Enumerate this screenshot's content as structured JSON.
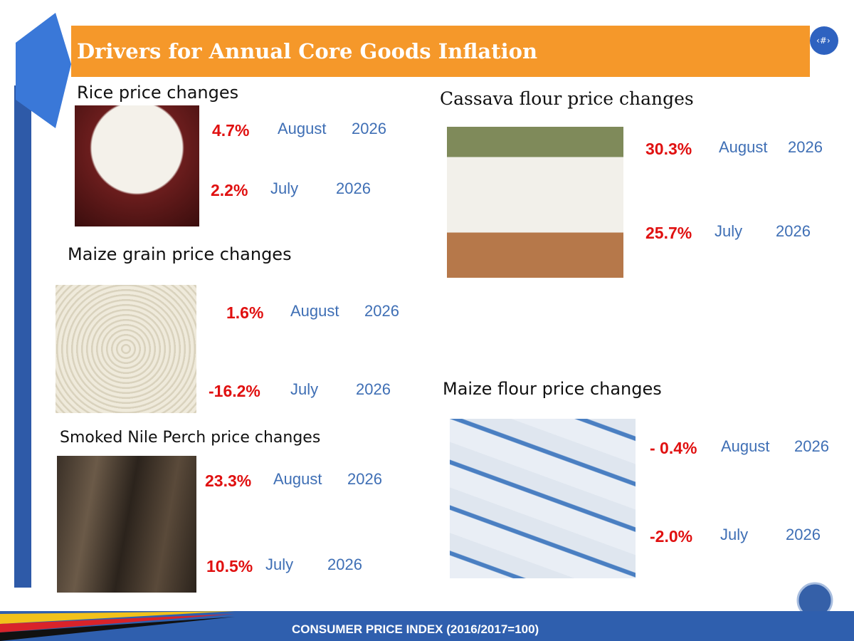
{
  "header": {
    "title": "Drivers for Annual Core Goods Inflation",
    "page_number": "‹#›"
  },
  "items": [
    {
      "title": "Rice price changes",
      "rows": [
        {
          "value": "4.7%",
          "month": "August",
          "year": "2026"
        },
        {
          "value": "2.2%",
          "month": "July",
          "year": "2026"
        }
      ]
    },
    {
      "title": "Maize grain price changes",
      "rows": [
        {
          "value": "1.6%",
          "month": "August",
          "year": "2026"
        },
        {
          "value": "-16.2%",
          "month": "July",
          "year": "2026"
        }
      ]
    },
    {
      "title": "Smoked  Nile Perch price changes",
      "rows": [
        {
          "value": "23.3%",
          "month": "August",
          "year": "2026"
        },
        {
          "value": "10.5%",
          "month": "July",
          "year": "2026"
        }
      ]
    },
    {
      "title": "Cassava flour price changes",
      "rows": [
        {
          "value": "30.3%",
          "month": "August",
          "year": "2026"
        },
        {
          "value": "25.7%",
          "month": "July",
          "year": "2026"
        }
      ]
    },
    {
      "title": "Maize flour  price changes",
      "rows": [
        {
          "value": "- 0.4%",
          "month": "August",
          "year": "2026"
        },
        {
          "value": "-2.0%",
          "month": "July",
          "year": "2026"
        }
      ]
    }
  ],
  "footer": {
    "text": "CONSUMER PRICE INDEX (2016/2017=100)"
  }
}
